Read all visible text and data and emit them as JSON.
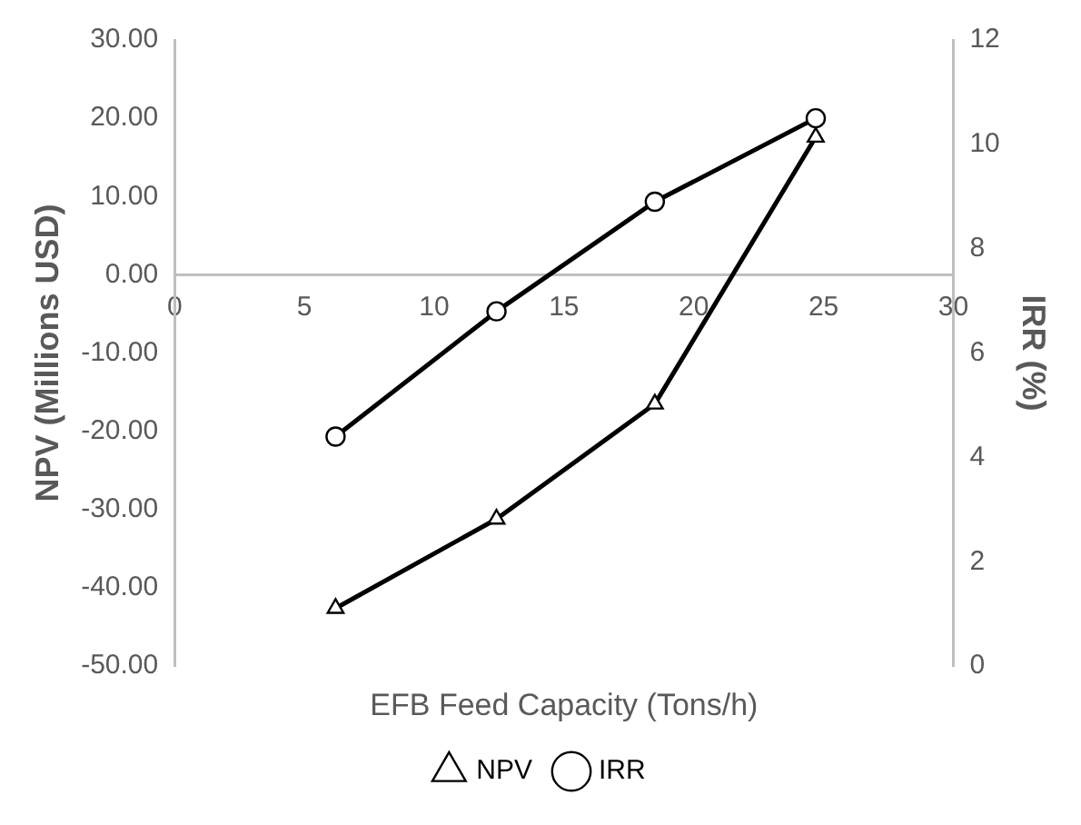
{
  "chart_data": {
    "type": "line",
    "xlabel": "EFB Feed Capacity (Tons/h)",
    "ylabel": "NPV (Millions USD)",
    "y2label": "IRR (%)",
    "x": [
      6.2,
      12.4,
      18.5,
      24.7
    ],
    "series": [
      {
        "name": "NPV",
        "color": "#000000",
        "marker": "triangle",
        "values": [
          -42.6,
          -31.2,
          -16.5,
          17.6
        ]
      },
      {
        "name": "IRR",
        "color": "#000000",
        "marker": "circle",
        "axis": "y2",
        "values": [
          4.4,
          6.8,
          8.9,
          10.5
        ]
      }
    ],
    "xlim": [
      0,
      30
    ],
    "xticks": [
      0,
      5,
      10,
      15,
      20,
      25,
      30
    ],
    "ylim": [
      -50,
      30
    ],
    "yticks": [
      {
        "value": -50,
        "label": "-50.00"
      },
      {
        "value": -40,
        "label": "-40.00"
      },
      {
        "value": -30,
        "label": "-30.00"
      },
      {
        "value": -20,
        "label": "-20.00"
      },
      {
        "value": -10,
        "label": "-10.00"
      },
      {
        "value": 0,
        "label": "0.00"
      },
      {
        "value": 10,
        "label": "10.00"
      },
      {
        "value": 20,
        "label": "20.00"
      },
      {
        "value": 30,
        "label": "30.00"
      }
    ],
    "y2lim": [
      0,
      12
    ],
    "y2ticks": [
      0,
      2,
      4,
      6,
      8,
      10,
      12
    ],
    "grid": false,
    "legend": "bottom",
    "line_style": "solid"
  }
}
